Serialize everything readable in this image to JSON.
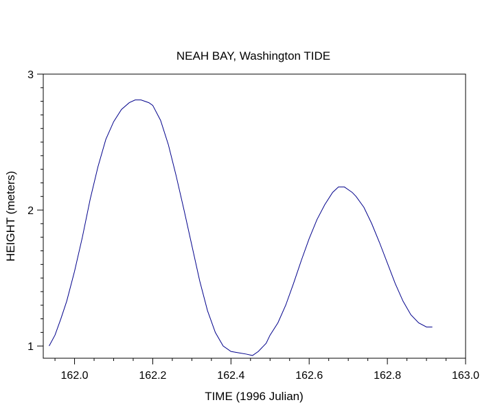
{
  "chart_data": {
    "type": "line",
    "title": "NEAH BAY, Washington TIDE",
    "xlabel": "TIME (1996 Julian)",
    "ylabel": "HEIGHT (meters)",
    "xlim": [
      161.92,
      163.0
    ],
    "ylim": [
      0.91,
      3.0
    ],
    "xticks": [
      162.0,
      162.2,
      162.4,
      162.6,
      162.8,
      163.0
    ],
    "xtick_labels": [
      "162.0",
      "162.2",
      "162.4",
      "162.6",
      "162.8",
      "163.0"
    ],
    "yticks": [
      1,
      2,
      3
    ],
    "ytick_labels": [
      "1",
      "2",
      "3"
    ],
    "grid": false,
    "line_color": "#00008b",
    "series": [
      {
        "x": [
          161.935,
          161.95,
          161.965,
          161.98,
          162.0,
          162.02,
          162.04,
          162.06,
          162.08,
          162.1,
          162.12,
          162.14,
          162.155,
          162.17,
          162.18,
          162.19,
          162.2,
          162.22,
          162.24,
          162.26,
          162.28,
          162.3,
          162.32,
          162.34,
          162.36,
          162.38,
          162.4,
          162.42,
          162.44,
          162.455,
          162.47,
          162.49,
          162.5,
          162.52,
          162.54,
          162.56,
          162.58,
          162.6,
          162.62,
          162.64,
          162.66,
          162.675,
          162.69,
          162.7,
          162.71,
          162.72,
          162.74,
          162.76,
          162.78,
          162.8,
          162.82,
          162.84,
          162.86,
          162.88,
          162.9,
          162.915
        ],
        "y": [
          1.0,
          1.08,
          1.2,
          1.33,
          1.55,
          1.8,
          2.08,
          2.32,
          2.52,
          2.65,
          2.74,
          2.79,
          2.81,
          2.81,
          2.8,
          2.79,
          2.77,
          2.66,
          2.48,
          2.25,
          2.0,
          1.74,
          1.48,
          1.26,
          1.1,
          1.0,
          0.96,
          0.95,
          0.94,
          0.93,
          0.96,
          1.02,
          1.08,
          1.17,
          1.3,
          1.46,
          1.63,
          1.79,
          1.93,
          2.04,
          2.13,
          2.17,
          2.17,
          2.15,
          2.13,
          2.1,
          2.02,
          1.9,
          1.76,
          1.61,
          1.46,
          1.33,
          1.23,
          1.17,
          1.14,
          1.14
        ]
      }
    ]
  }
}
